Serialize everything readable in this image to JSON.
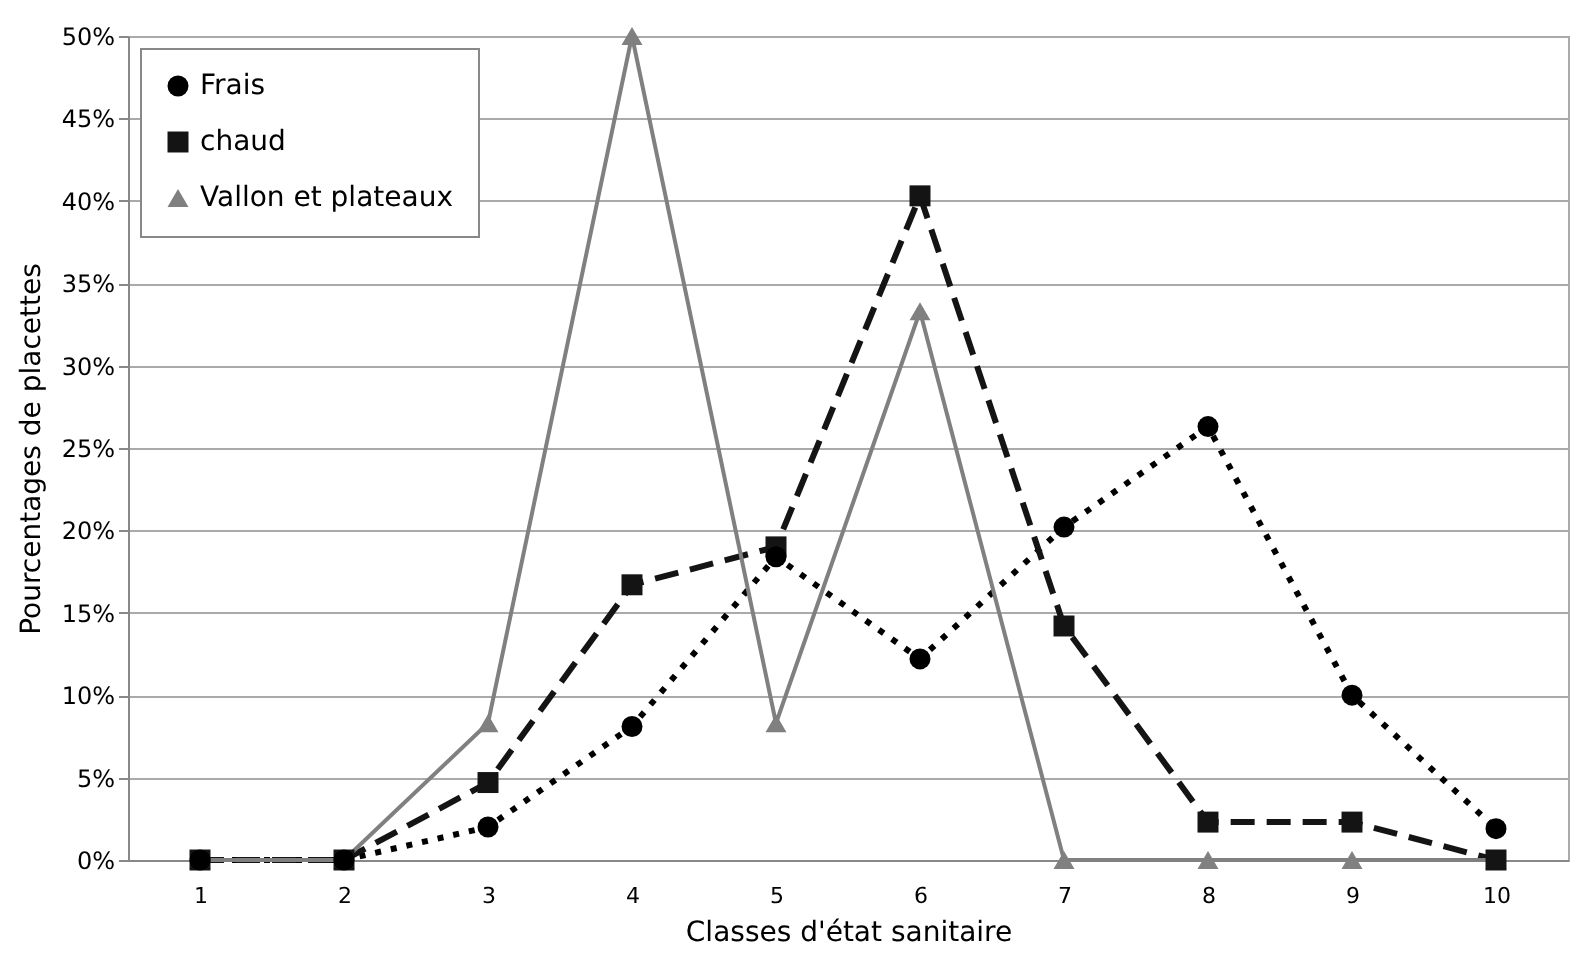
{
  "chart_data": {
    "type": "line",
    "xlabel": "Classes d'état sanitaire",
    "ylabel": "Pourcentages de placettes",
    "categories": [
      "1",
      "2",
      "3",
      "4",
      "5",
      "6",
      "7",
      "8",
      "9",
      "10"
    ],
    "series": [
      {
        "name": "Frais",
        "color": "#000000",
        "marker": "circle",
        "line_style": "dotted",
        "values": [
          0,
          0,
          2.0,
          8.1,
          18.4,
          12.2,
          20.2,
          26.3,
          10.0,
          1.9
        ]
      },
      {
        "name": "chaud",
        "color": "#141414",
        "marker": "square",
        "line_style": "dashed",
        "values": [
          0,
          0,
          4.7,
          16.7,
          19.0,
          40.3,
          14.2,
          2.3,
          2.3,
          0
        ]
      },
      {
        "name": "Vallon et plateaux",
        "color": "#808080",
        "marker": "triangle",
        "line_style": "solid",
        "values": [
          0,
          0,
          8.3,
          50,
          8.3,
          33.3,
          0,
          0,
          0,
          0
        ]
      }
    ],
    "ylim": [
      0,
      50
    ],
    "yticks": [
      {
        "value": 0,
        "label": "0%"
      },
      {
        "value": 5,
        "label": "5%"
      },
      {
        "value": 10,
        "label": "10%"
      },
      {
        "value": 15,
        "label": "15%"
      },
      {
        "value": 20,
        "label": "20%"
      },
      {
        "value": 25,
        "label": "25%"
      },
      {
        "value": 30,
        "label": "30%"
      },
      {
        "value": 35,
        "label": "35%"
      },
      {
        "value": 40,
        "label": "40%"
      },
      {
        "value": 45,
        "label": "45%"
      },
      {
        "value": 50,
        "label": "50%"
      }
    ],
    "grid": "y",
    "legend": "top left"
  }
}
